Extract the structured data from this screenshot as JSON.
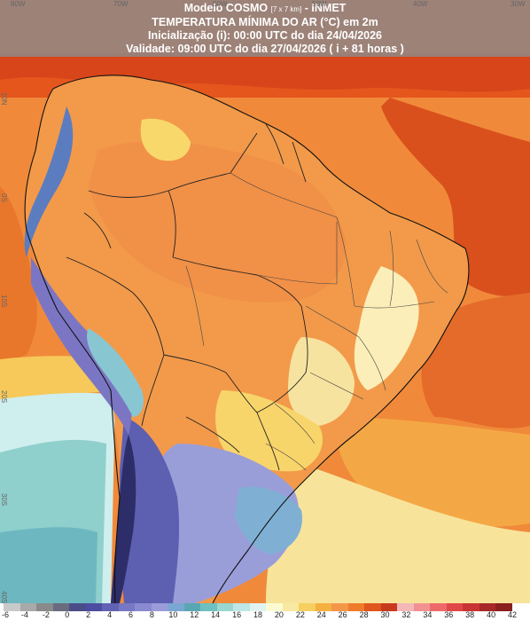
{
  "header": {
    "title_prefix": "Modelo COSMO ",
    "title_res": "[7 x 7 km]",
    "title_suffix": " - INMET",
    "variable": "TEMPERATURA MÍNIMA DO AR (°C) em 2m",
    "init": "Inicialização (i): 00:00 UTC do dia 24/04/2026",
    "valid": "Validade: 09:00 UTC do dia 27/04/2026 ( i + 81 horas )"
  },
  "lon_labels": [
    "80W",
    "70W",
    "60W",
    "50W",
    "40W",
    "30W"
  ],
  "lat_labels": [
    "10N",
    "0S",
    "10S",
    "20S",
    "30S",
    "40S"
  ],
  "legend": {
    "ticks": [
      "-6",
      "-4",
      "-2",
      "0",
      "2",
      "4",
      "6",
      "8",
      "10",
      "12",
      "14",
      "16",
      "18",
      "20",
      "22",
      "24",
      "26",
      "28",
      "30",
      "32",
      "34",
      "36",
      "38",
      "40",
      "42"
    ],
    "colors": [
      "#c9c9c9",
      "#a9a9a9",
      "#8a8a8a",
      "#6b6b80",
      "#4b4b8a",
      "#4c4ca0",
      "#6262b4",
      "#7777c4",
      "#8a8ad0",
      "#9b9bdb",
      "#7aa6d2",
      "#5aa7b4",
      "#6ec0c0",
      "#98d8d0",
      "#bfe6e6",
      "#e0f3f3",
      "#fbfbd2",
      "#f7e8a2",
      "#f6cf60",
      "#f4b040",
      "#f49648",
      "#ef7b2c",
      "#e0561d",
      "#c83a1e",
      "#f4b8b8",
      "#f29191",
      "#ee6a6a",
      "#e04848",
      "#c93333",
      "#a82828",
      "#8a1f1f"
    ]
  }
}
